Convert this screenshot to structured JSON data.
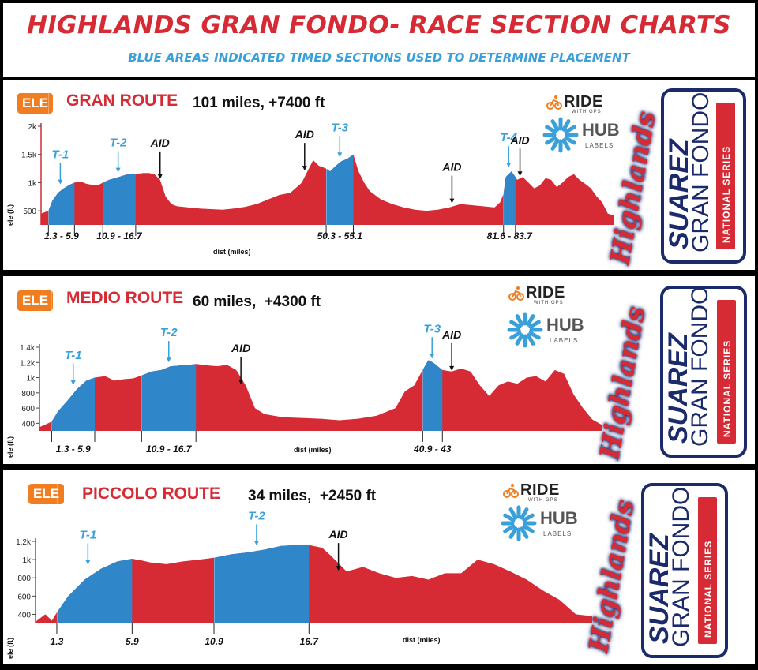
{
  "header": {
    "title": "HIGHLANDS GRAN FONDO- RACE SECTION CHARTS",
    "subtitle": "BLUE AREAS INDICATED TIMED SECTIONS USED TO DETERMINE PLACEMENT"
  },
  "branding": {
    "ride_word": "RIDE",
    "ride_sub": "WITH GPS",
    "hub_word": "HUB",
    "hub_sub": "LABELS",
    "highlands": "Highlands",
    "suarez": "SUAREZ",
    "gran_fondo": "GRAN FONDO",
    "national_series": "NATIONAL SERIES"
  },
  "colors": {
    "profile_red": "#d62b35",
    "timed_blue": "#2f86c8",
    "ele_orange": "#f07d20",
    "label_blue": "#3aa0da"
  },
  "chart_data": [
    {
      "type": "area",
      "route": "GRAN ROUTE",
      "stats": "101 miles, +7400 ft",
      "ele_badge": "ELE",
      "xlabel": "dist (miles)",
      "ylabel": "ele (ft)",
      "yticks": [
        "2k",
        "1.5k",
        "1k",
        "500"
      ],
      "ytick_values": [
        2000,
        1500,
        1000,
        500
      ],
      "ylim": [
        250,
        2000
      ],
      "xlim": [
        0,
        101
      ],
      "x": [
        0,
        1.3,
        2,
        3,
        4,
        5,
        5.9,
        7,
        8,
        9,
        10,
        10.9,
        12,
        13,
        14,
        15,
        16,
        16.7,
        18,
        19,
        20,
        21,
        22,
        23,
        24,
        26,
        28,
        30,
        32,
        34,
        36,
        38,
        40,
        42,
        44,
        46,
        47,
        48,
        49,
        50.3,
        51,
        52,
        53,
        54,
        55.1,
        56,
        57,
        58,
        60,
        62,
        64,
        66,
        68,
        70,
        72,
        74,
        76,
        78,
        80,
        81,
        81.6,
        82,
        83,
        83.7,
        84,
        85,
        86,
        87,
        88,
        89,
        90,
        91,
        92,
        93,
        94,
        95,
        96,
        97,
        98,
        99,
        100,
        101
      ],
      "y": [
        450,
        500,
        680,
        820,
        900,
        960,
        1000,
        1020,
        980,
        960,
        950,
        1000,
        1050,
        1080,
        1110,
        1140,
        1160,
        1150,
        1170,
        1170,
        1150,
        1050,
        750,
        620,
        580,
        560,
        540,
        530,
        520,
        540,
        570,
        620,
        700,
        780,
        820,
        1000,
        1200,
        1400,
        1300,
        1250,
        1200,
        1300,
        1380,
        1420,
        1500,
        1200,
        1000,
        850,
        700,
        620,
        560,
        520,
        500,
        520,
        560,
        620,
        600,
        580,
        560,
        650,
        800,
        1100,
        1200,
        1100,
        1050,
        1100,
        1000,
        900,
        950,
        1080,
        1050,
        920,
        1000,
        1100,
        1150,
        1050,
        980,
        900,
        760,
        650,
        450,
        420
      ],
      "timed_sections": [
        {
          "label": "T-1",
          "range": "1.3 - 5.9",
          "start": 1.3,
          "end": 5.9
        },
        {
          "label": "T-2",
          "range": "10.9 - 16.7",
          "start": 10.9,
          "end": 16.7
        },
        {
          "label": "T-3",
          "range": "50.3 - 55.1",
          "start": 50.3,
          "end": 55.1
        },
        {
          "label": "T-4",
          "range": "81.6 - 83.7",
          "start": 81.6,
          "end": 83.7
        }
      ],
      "timed_label_at": [
        3.4,
        13.6,
        52.7,
        82.5
      ],
      "aid_stations": [
        {
          "label": "AID",
          "mile": 21
        },
        {
          "label": "AID",
          "mile": 46.5
        },
        {
          "label": "AID",
          "mile": 72.5
        },
        {
          "label": "AID",
          "mile": 84.5
        }
      ]
    },
    {
      "type": "area",
      "route": "MEDIO ROUTE",
      "stats": "60 miles,  +4300 ft",
      "ele_badge": "ELE",
      "xlabel": "dist (miles)",
      "ylabel": "ele (ft)",
      "yticks": [
        "1.4k",
        "1.2k",
        "1k",
        "800",
        "600",
        "400"
      ],
      "ytick_values": [
        1400,
        1200,
        1000,
        800,
        600,
        400
      ],
      "ylim": [
        300,
        1400
      ],
      "xlim": [
        0,
        60
      ],
      "x": [
        0,
        1.3,
        2,
        3,
        4,
        5,
        5.9,
        7,
        8,
        9,
        10,
        10.9,
        12,
        13,
        14,
        15,
        16,
        16.7,
        18,
        19,
        20,
        21,
        22,
        23,
        24,
        26,
        28,
        30,
        32,
        34,
        36,
        38,
        39,
        40,
        40.9,
        41.5,
        42,
        43,
        44,
        45,
        46,
        47,
        48,
        49,
        50,
        51,
        52,
        53,
        54,
        55,
        56,
        57,
        58,
        59,
        60
      ],
      "y": [
        350,
        420,
        560,
        700,
        850,
        960,
        1000,
        1020,
        960,
        980,
        990,
        1030,
        1080,
        1100,
        1150,
        1160,
        1170,
        1180,
        1160,
        1150,
        1170,
        1100,
        900,
        600,
        520,
        480,
        470,
        460,
        440,
        460,
        500,
        600,
        820,
        900,
        1100,
        1230,
        1200,
        1100,
        1080,
        1120,
        1080,
        900,
        760,
        900,
        950,
        920,
        1000,
        1020,
        950,
        1100,
        1050,
        780,
        600,
        450,
        380
      ],
      "timed_sections": [
        {
          "label": "T-1",
          "range": "1.3   - 5.9",
          "start": 1.3,
          "end": 5.9
        },
        {
          "label": "T-2",
          "range": "10.9  -   16.7",
          "start": 10.9,
          "end": 16.7
        },
        {
          "label": "T-3",
          "range": "40.9 - 43",
          "start": 40.9,
          "end": 43
        }
      ],
      "timed_label_at": [
        3.6,
        13.8,
        41.9
      ],
      "aid_stations": [
        {
          "label": "AID",
          "mile": 21.5
        },
        {
          "label": "AID",
          "mile": 44
        }
      ]
    },
    {
      "type": "area",
      "route": "PICCOLO  ROUTE",
      "stats": "34 miles,  +2450 ft",
      "ele_badge": "ELE",
      "xlabel": "dist (miles)",
      "ylabel": "ele (ft)",
      "yticks": [
        "1.2k",
        "1k",
        "800",
        "600",
        "400"
      ],
      "ytick_values": [
        1200,
        1000,
        800,
        600,
        400
      ],
      "ylim": [
        300,
        1200
      ],
      "xlim": [
        0,
        34
      ],
      "x": [
        0,
        0.6,
        1,
        1.3,
        2,
        3,
        4,
        5,
        5.9,
        6.5,
        7,
        8,
        9,
        10,
        10.9,
        12,
        13,
        14,
        15,
        16,
        16.7,
        17.5,
        18,
        19,
        20,
        21,
        22,
        23,
        24,
        25,
        26,
        27,
        28,
        29,
        30,
        31,
        32,
        33,
        34
      ],
      "y": [
        320,
        400,
        330,
        420,
        600,
        780,
        900,
        980,
        1010,
        990,
        970,
        950,
        980,
        1000,
        1020,
        1060,
        1080,
        1110,
        1150,
        1160,
        1160,
        1130,
        1050,
        870,
        920,
        850,
        800,
        820,
        780,
        850,
        850,
        1000,
        950,
        870,
        780,
        660,
        560,
        400,
        380
      ],
      "timed_sections": [
        {
          "label": "T-1",
          "range": "1.3",
          "start": 1.3,
          "end": 5.9
        },
        {
          "label": "T-2",
          "range": "10.9",
          "start": 10.9,
          "end": 16.7
        }
      ],
      "tick_labels": [
        "1.3",
        "5.9",
        "10.9",
        "16.7"
      ],
      "tick_values": [
        1.3,
        5.9,
        10.9,
        16.7
      ],
      "timed_label_at": [
        3.2,
        13.5
      ],
      "aid_stations": [
        {
          "label": "AID",
          "mile": 18.5
        }
      ]
    }
  ]
}
